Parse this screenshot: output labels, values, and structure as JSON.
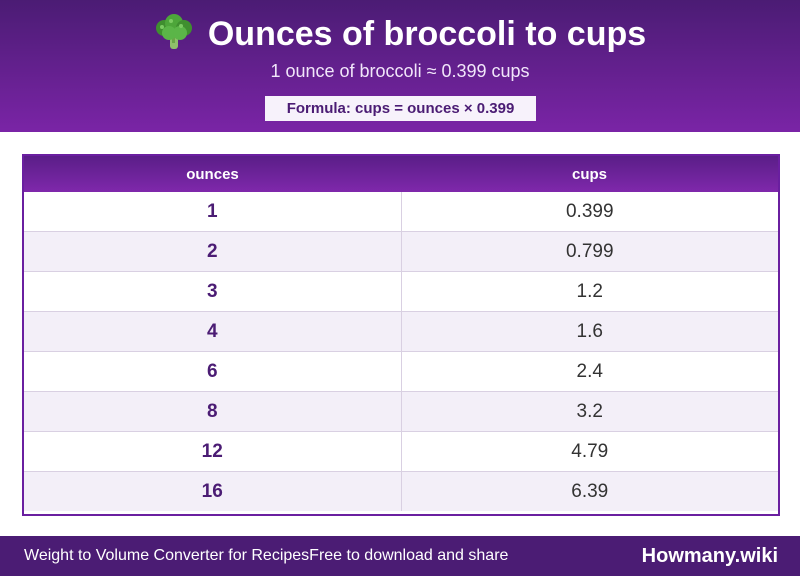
{
  "header": {
    "emoji_icon": "broccoli-icon",
    "title": "Ounces of broccoli to cups",
    "subtitle": "1 ounce of broccoli ≈ 0.399 cups",
    "formula": "Formula: cups = ounces × 0.399"
  },
  "table": {
    "columns": [
      "ounces",
      "cups"
    ],
    "rows": [
      {
        "ounces": "1",
        "cups": "0.399"
      },
      {
        "ounces": "2",
        "cups": "0.799"
      },
      {
        "ounces": "3",
        "cups": "1.2"
      },
      {
        "ounces": "4",
        "cups": "1.6"
      },
      {
        "ounces": "6",
        "cups": "2.4"
      },
      {
        "ounces": "8",
        "cups": "3.2"
      },
      {
        "ounces": "12",
        "cups": "4.79"
      },
      {
        "ounces": "16",
        "cups": "6.39"
      }
    ]
  },
  "footer": {
    "left_text_1": "Weight to Volume Converter for Recipes",
    "left_text_2": "Free to download and share",
    "brand": "Howmany.wiki"
  },
  "colors": {
    "header_purple": "#4b1c74",
    "accent_purple": "#7a24a6",
    "alt_row": "#f3eff8"
  }
}
